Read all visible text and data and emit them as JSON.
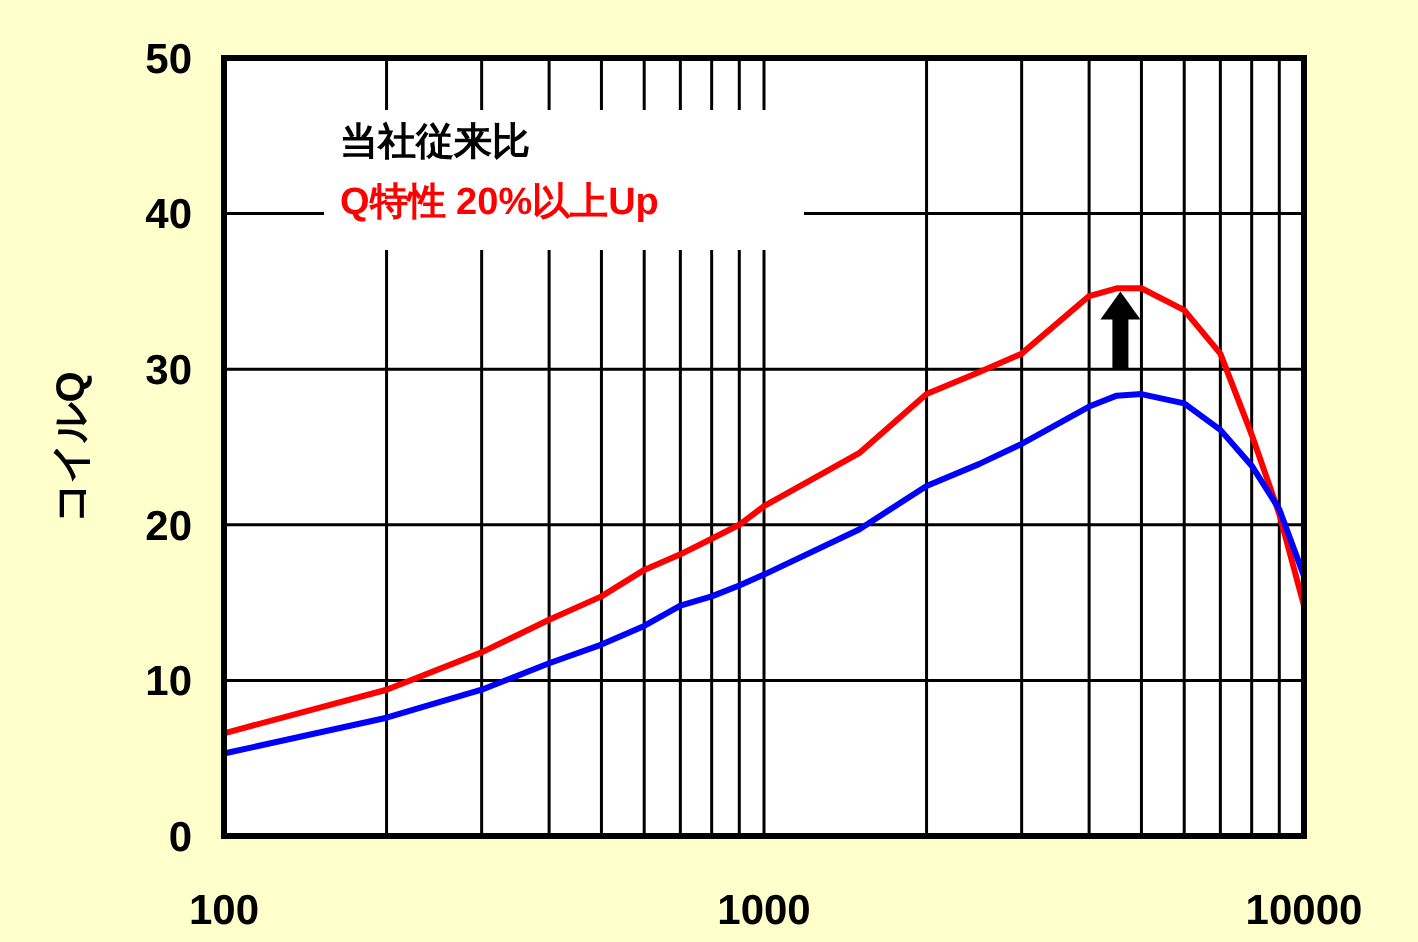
{
  "chart_data": {
    "type": "line",
    "ylabel": "コイルQ",
    "log": "x",
    "grid": true,
    "marker": "none",
    "line_style": "solid",
    "xlim": [
      100,
      10000
    ],
    "ylim": [
      0,
      50
    ],
    "xticks": [
      100,
      {
        "value": 200,
        "label": null
      },
      {
        "value": 300,
        "label": null
      },
      {
        "value": 400,
        "label": null
      },
      {
        "value": 500,
        "label": null
      },
      {
        "value": 600,
        "label": null
      },
      {
        "value": 700,
        "label": null
      },
      {
        "value": 800,
        "label": null
      },
      {
        "value": 900,
        "label": null
      },
      1000,
      {
        "value": 2000,
        "label": null
      },
      {
        "value": 3000,
        "label": null
      },
      {
        "value": 4000,
        "label": null
      },
      {
        "value": 5000,
        "label": null
      },
      {
        "value": 6000,
        "label": null
      },
      {
        "value": 7000,
        "label": null
      },
      {
        "value": 8000,
        "label": null
      },
      {
        "value": 9000,
        "label": null
      },
      10000
    ],
    "yticks": [
      0,
      10,
      20,
      30,
      40,
      50
    ],
    "x": [
      100,
      200,
      300,
      400,
      500,
      600,
      700,
      800,
      900,
      1000,
      1500,
      2000,
      2500,
      3000,
      4000,
      4500,
      5000,
      6000,
      7000,
      8000,
      9000,
      10000
    ],
    "series": [
      {
        "color": "#ff0000",
        "values": [
          6.6,
          9.4,
          11.8,
          13.9,
          15.4,
          17.1,
          18.1,
          19.1,
          20.0,
          21.2,
          24.6,
          28.4,
          29.8,
          31.0,
          34.7,
          35.2,
          35.2,
          33.8,
          31.0,
          25.8,
          20.7,
          14.8
        ]
      },
      {
        "color": "#0000ff",
        "values": [
          5.3,
          7.6,
          9.4,
          11.1,
          12.3,
          13.5,
          14.8,
          15.4,
          16.1,
          16.8,
          19.7,
          22.5,
          23.9,
          25.2,
          27.6,
          28.3,
          28.4,
          27.8,
          26.1,
          23.8,
          21.0,
          16.7
        ]
      }
    ],
    "annotations": [
      "当社従来比",
      "Q特性 20%以上Up"
    ]
  }
}
